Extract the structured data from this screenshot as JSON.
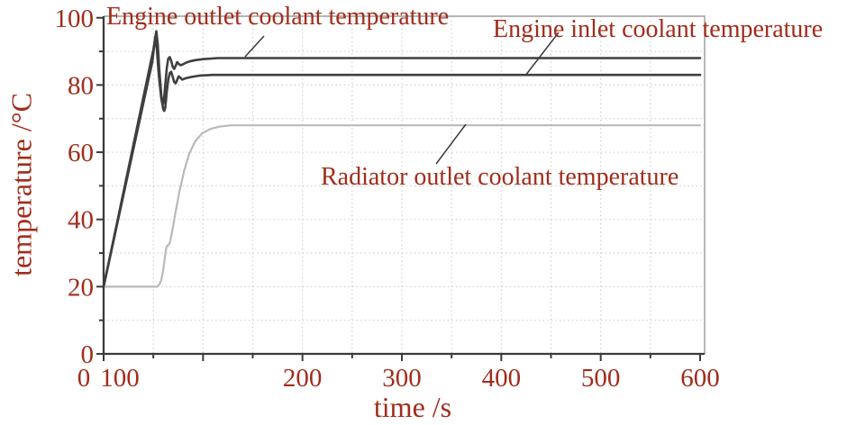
{
  "chart_data": {
    "type": "line",
    "title": "",
    "xlabel": "time /s",
    "ylabel": "temperature /°C",
    "x_axis": {
      "range": [
        0,
        600
      ],
      "major_ticks": [
        0,
        100,
        200,
        300,
        400,
        500,
        600
      ],
      "tick_labels": [
        "0",
        "100",
        "200",
        "300",
        "400",
        "500",
        "600"
      ],
      "minor_ticks": [
        50,
        150,
        250,
        350,
        450,
        550
      ],
      "label_overlap_note": "0100"
    },
    "y_axis": {
      "range": [
        0,
        100
      ],
      "major_ticks": [
        0,
        20,
        40,
        60,
        80,
        100
      ],
      "tick_labels": [
        "0",
        "20",
        "40",
        "60",
        "80",
        "100"
      ],
      "minor_ticks": [
        10,
        30,
        50,
        70,
        90
      ]
    },
    "grid": {
      "visible": true,
      "style": "dotted",
      "x_interval": 50,
      "y_interval": 10
    },
    "legend_position": "annotations-on-plot",
    "series": [
      {
        "name": "Engine outlet coolant temperature",
        "color": "#3f3f3f",
        "width": 2.6,
        "start_c": 20,
        "peak_c": 96,
        "steady_state_c": 88,
        "points": [
          [
            0,
            20
          ],
          [
            50,
            90.5
          ],
          [
            53,
            96
          ],
          [
            54.5,
            92
          ],
          [
            56,
            84.5
          ],
          [
            58,
            77
          ],
          [
            59.5,
            74.2
          ],
          [
            60.5,
            75
          ],
          [
            62,
            80
          ],
          [
            63.5,
            85
          ],
          [
            65,
            87.8
          ],
          [
            66.5,
            88.3
          ],
          [
            68,
            87.2
          ],
          [
            69.5,
            85.4
          ],
          [
            71,
            84.8
          ],
          [
            72.5,
            85.7
          ],
          [
            74,
            86.8
          ],
          [
            75.5,
            86.3
          ],
          [
            77.5,
            85.9
          ],
          [
            79.5,
            86.1
          ],
          [
            82,
            86.5
          ],
          [
            86,
            87
          ],
          [
            92,
            87.4
          ],
          [
            100,
            87.7
          ],
          [
            115,
            88
          ],
          [
            200,
            88
          ],
          [
            300,
            88
          ],
          [
            400,
            88
          ],
          [
            500,
            88
          ],
          [
            600,
            88
          ]
        ]
      },
      {
        "name": "Engine inlet coolant temperature",
        "color": "#3f3f3f",
        "width": 2.6,
        "start_c": 20,
        "peak_c": 94.5,
        "steady_state_c": 83,
        "points": [
          [
            0,
            20
          ],
          [
            49,
            87
          ],
          [
            52,
            94.5
          ],
          [
            53.5,
            91
          ],
          [
            55.5,
            83
          ],
          [
            58,
            76
          ],
          [
            60,
            72.8
          ],
          [
            61,
            72.3
          ],
          [
            62,
            73.2
          ],
          [
            63.5,
            78
          ],
          [
            65,
            81.5
          ],
          [
            66.5,
            83.6
          ],
          [
            68,
            83.9
          ],
          [
            69.5,
            82.4
          ],
          [
            71,
            80.9
          ],
          [
            72.5,
            80.5
          ],
          [
            74,
            81.5
          ],
          [
            75.5,
            82.6
          ],
          [
            77,
            82.2
          ],
          [
            79,
            81.6
          ],
          [
            81.5,
            81.9
          ],
          [
            85,
            82.2
          ],
          [
            90,
            82.5
          ],
          [
            97,
            82.8
          ],
          [
            110,
            83
          ],
          [
            200,
            83
          ],
          [
            300,
            83
          ],
          [
            400,
            83
          ],
          [
            500,
            83
          ],
          [
            600,
            83
          ]
        ]
      },
      {
        "name": "Radiator outlet coolant temperature",
        "color": "#b9b9b9",
        "width": 2.2,
        "start_c": 20,
        "steady_state_c": 68,
        "points": [
          [
            0,
            20
          ],
          [
            54,
            20
          ],
          [
            56,
            20.6
          ],
          [
            58,
            22
          ],
          [
            60,
            25
          ],
          [
            62,
            29.5
          ],
          [
            63,
            31.5
          ],
          [
            64,
            32.2
          ],
          [
            65.5,
            32.4
          ],
          [
            67,
            33.5
          ],
          [
            69,
            36.5
          ],
          [
            72,
            41.5
          ],
          [
            76,
            48
          ],
          [
            81,
            54.5
          ],
          [
            86,
            59.5
          ],
          [
            92,
            63.2
          ],
          [
            99,
            65.6
          ],
          [
            107,
            66.9
          ],
          [
            116,
            67.6
          ],
          [
            128,
            68
          ],
          [
            200,
            68
          ],
          [
            300,
            68
          ],
          [
            400,
            68
          ],
          [
            500,
            68
          ],
          [
            600,
            68
          ]
        ]
      }
    ],
    "colors": {
      "text": "#a12c1b",
      "axis": "#3a3a3a",
      "border": "#ababab",
      "grid": "#cdcdcd"
    }
  }
}
